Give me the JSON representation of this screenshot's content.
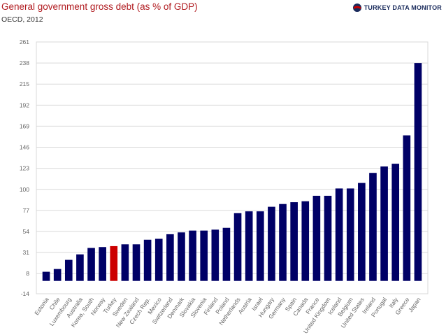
{
  "header": {
    "title": "General government gross debt (as % of GDP)",
    "subtitle": "OECD, 2012",
    "brand": "TURKEY DATA MONITOR"
  },
  "colors": {
    "bar": "#000066",
    "highlight": "#cc0000",
    "grid": "#d9d9d9",
    "title": "#b0191e"
  },
  "chart_data": {
    "type": "bar",
    "title": "General government gross debt (as % of GDP)",
    "subtitle": "OECD, 2012",
    "xlabel": "",
    "ylabel": "",
    "ylim": [
      -14,
      261
    ],
    "yticks": [
      261,
      238,
      215,
      192,
      169,
      146,
      123,
      100,
      77,
      54,
      31,
      8,
      -14
    ],
    "grid": true,
    "highlight": "Turkey",
    "categories": [
      "Estonia",
      "Chile",
      "Luxembourg",
      "Australia",
      "Korea, South",
      "Norway",
      "Turkey",
      "Sweden",
      "New Zealand",
      "Czech Rep.",
      "Mexico",
      "Switzerland",
      "Denmark",
      "Slovakia",
      "Slovenia",
      "Finland",
      "Poland",
      "Netherlands",
      "Austria",
      "Israel",
      "Hungary",
      "Germany",
      "Spain",
      "Canada",
      "France",
      "United Kingdom",
      "Iceland",
      "Belgium",
      "United States",
      "Ireland",
      "Portugal",
      "Italy",
      "Greece",
      "Japan"
    ],
    "values": [
      10,
      13,
      23,
      29,
      36,
      37,
      38,
      40,
      40,
      45,
      46,
      51,
      53,
      55,
      55,
      56,
      58,
      74,
      76,
      76,
      81,
      84,
      86,
      87,
      93,
      93,
      101,
      101,
      107,
      118,
      125,
      128,
      159,
      238
    ]
  }
}
